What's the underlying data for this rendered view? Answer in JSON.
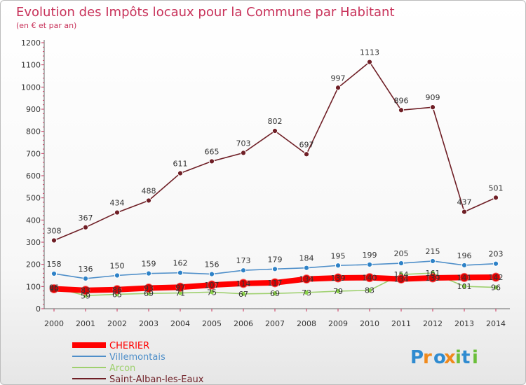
{
  "chart_data": {
    "type": "line",
    "title": "Evolution des Impôts locaux pour la Commune par Habitant",
    "subtitle": "(en € et par an)",
    "categories": [
      "2000",
      "2001",
      "2002",
      "2003",
      "2004",
      "2005",
      "2006",
      "2007",
      "2008",
      "2009",
      "2010",
      "2011",
      "2012",
      "2013",
      "2014"
    ],
    "ylim": [
      0,
      1200
    ],
    "yticks": [
      "0",
      "100",
      "200",
      "300",
      "400",
      "500",
      "600",
      "700",
      "800",
      "900",
      "1000",
      "1100",
      "1200"
    ],
    "grid": false,
    "series": [
      {
        "name": "CHERIER",
        "color": "#ff0000",
        "marker": "#dd0000",
        "values": [
          90,
          83,
          86,
          93,
          97,
          107,
          114,
          117,
          134,
          139,
          140,
          134,
          139,
          141,
          142
        ]
      },
      {
        "name": "Villemontais",
        "color": "#4f8fc9",
        "marker": "#2e82c7",
        "values": [
          158,
          136,
          150,
          159,
          162,
          156,
          173,
          179,
          184,
          195,
          199,
          205,
          215,
          196,
          203
        ]
      },
      {
        "name": "Arcon",
        "color": "#9ed06e",
        "marker": "#8bd14b",
        "values": [
          96,
          59,
          65,
          69,
          71,
          75,
          67,
          69,
          73,
          79,
          83,
          154,
          161,
          101,
          96
        ]
      },
      {
        "name": "Saint-Alban-les-Eaux",
        "color": "#6f1f26",
        "marker": "#6f1f26",
        "values": [
          308,
          367,
          434,
          488,
          611,
          665,
          703,
          802,
          697,
          997,
          1113,
          896,
          909,
          437,
          501
        ]
      }
    ],
    "labels": {
      "Villemontais": [
        "158",
        "136",
        "150",
        "159",
        "162",
        "156",
        "173",
        "179",
        "184",
        "195",
        "199",
        "205",
        "215",
        "196",
        "203"
      ],
      "Saint-Alban-les-Eaux": [
        "308",
        "367",
        "434",
        "488",
        "611",
        "665",
        "703",
        "802",
        "697",
        "997",
        "1113",
        "896",
        "909",
        "437",
        "501"
      ],
      "CHERIER": [
        "90",
        "83",
        "86",
        "93",
        "97",
        "107",
        "114",
        "117",
        "134",
        "139",
        "140",
        "134",
        "139",
        "141",
        "142"
      ],
      "Arcon": [
        "96",
        "59",
        "65",
        "69",
        "71",
        "75",
        "67",
        "69",
        "73",
        "79",
        "83",
        "154",
        "161",
        "101",
        "96"
      ]
    }
  },
  "brand": {
    "text": "Proxiti"
  }
}
